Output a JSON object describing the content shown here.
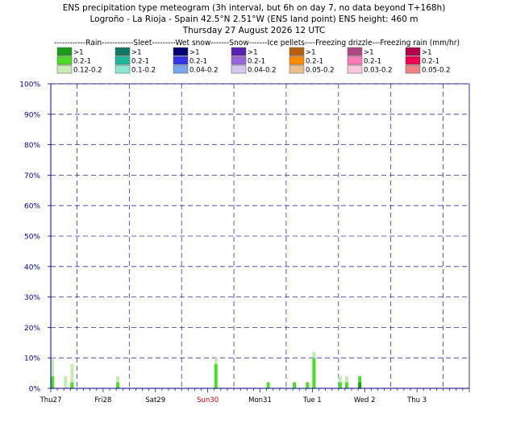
{
  "chart_data": {
    "type": "bar",
    "stacked": true,
    "title": [
      "ENS precipitation type meteogram (3h interval, but 6h on day 7, no data beyond T+168h)",
      "Logroño - La Rioja - Spain 42.5°N 2.51°W (ENS land point) ENS height: 460 m",
      "Thursday 27 August 2026 12 UTC"
    ],
    "legend_header": "------------Rain------------Sleet---------Wet snow-------Snow-------Ice pellets----Freezing drizzle---Freezing rain (mm/hr)",
    "legend": [
      {
        "type": "Rain",
        "classes": [
          {
            "label": ">1",
            "color": "#1a9a1a"
          },
          {
            "label": "0.2-1",
            "color": "#4ddc2a"
          },
          {
            "label": "0.12-0.2",
            "color": "#c8eab4"
          }
        ]
      },
      {
        "type": "Sleet",
        "classes": [
          {
            "label": ">1",
            "color": "#117864"
          },
          {
            "label": "0.2-1",
            "color": "#22b89a"
          },
          {
            "label": "0.1-0.2",
            "color": "#8de6d2"
          }
        ]
      },
      {
        "type": "Wet snow",
        "classes": [
          {
            "label": ">1",
            "color": "#000070"
          },
          {
            "label": "0.2-1",
            "color": "#3535e6"
          },
          {
            "label": "0.04-0.2",
            "color": "#7aa6ee"
          }
        ]
      },
      {
        "type": "Snow",
        "classes": [
          {
            "label": ">1",
            "color": "#5a20b0"
          },
          {
            "label": "0.2-1",
            "color": "#9a66dc"
          },
          {
            "label": "0.04-0.2",
            "color": "#d4c6ee"
          }
        ]
      },
      {
        "type": "Ice pellets",
        "classes": [
          {
            "label": ">1",
            "color": "#b86010"
          },
          {
            "label": "0.2-1",
            "color": "#ff8c00"
          },
          {
            "label": "0.05-0.2",
            "color": "#ecc08c"
          }
        ]
      },
      {
        "type": "Freezing drizzle",
        "classes": [
          {
            "label": ">1",
            "color": "#b04884"
          },
          {
            "label": "0.2-1",
            "color": "#ff7ab8"
          },
          {
            "label": "0.03-0.2",
            "color": "#f8c6dc"
          }
        ]
      },
      {
        "type": "Freezing rain",
        "classes": [
          {
            "label": ">1",
            "color": "#b00048"
          },
          {
            "label": "0.2-1",
            "color": "#f00050"
          },
          {
            "label": "0.05-0.2",
            "color": "#f08484"
          }
        ]
      }
    ],
    "yticks": [
      "0%",
      "10%",
      "20%",
      "30%",
      "40%",
      "50%",
      "60%",
      "70%",
      "80%",
      "90%",
      "100%"
    ],
    "ylim": [
      0,
      100
    ],
    "xlim": [
      0,
      8
    ],
    "xticks": [
      {
        "label": "Thu27",
        "color": "#000000"
      },
      {
        "label": "Fri28",
        "color": "#000000"
      },
      {
        "label": "Sat29",
        "color": "#000000"
      },
      {
        "label": "Sun30",
        "color": "#cc0000"
      },
      {
        "label": "Mon31",
        "color": "#000000"
      },
      {
        "label": "Tue 1",
        "color": "#000000"
      },
      {
        "label": "Wed 2",
        "color": "#000000"
      },
      {
        "label": "Thu 3",
        "color": "#000000"
      }
    ],
    "grid": true,
    "bar_width_days": 0.0625,
    "bars": [
      {
        "x": 0.0,
        "segments": [
          {
            "value": 4,
            "color": "#4ddc2a"
          },
          {
            "value": 6,
            "color": "#c8eab4"
          }
        ]
      },
      {
        "x": 0.25,
        "segments": [
          {
            "value": 4,
            "color": "#c8eab4"
          }
        ]
      },
      {
        "x": 0.375,
        "segments": [
          {
            "value": 2,
            "color": "#4ddc2a"
          },
          {
            "value": 6,
            "color": "#c8eab4"
          }
        ]
      },
      {
        "x": 1.25,
        "segments": [
          {
            "value": 2,
            "color": "#4ddc2a"
          },
          {
            "value": 2,
            "color": "#c8eab4"
          }
        ]
      },
      {
        "x": 3.125,
        "segments": [
          {
            "value": 8,
            "color": "#4ddc2a"
          },
          {
            "value": 2,
            "color": "#c8eab4"
          }
        ]
      },
      {
        "x": 4.125,
        "segments": [
          {
            "value": 2,
            "color": "#4ddc2a"
          }
        ]
      },
      {
        "x": 4.625,
        "segments": [
          {
            "value": 2,
            "color": "#4ddc2a"
          }
        ]
      },
      {
        "x": 4.875,
        "segments": [
          {
            "value": 2,
            "color": "#4ddc2a"
          }
        ]
      },
      {
        "x": 5.0,
        "segments": [
          {
            "value": 10,
            "color": "#4ddc2a"
          },
          {
            "value": 2,
            "color": "#c8eab4"
          }
        ]
      },
      {
        "x": 5.5,
        "segments": [
          {
            "value": 2,
            "color": "#4ddc2a"
          },
          {
            "value": 2,
            "color": "#c8eab4"
          }
        ]
      },
      {
        "x": 5.625,
        "segments": [
          {
            "value": 2,
            "color": "#4ddc2a"
          },
          {
            "value": 2,
            "color": "#c8eab4"
          }
        ]
      },
      {
        "x": 5.875,
        "segments": [
          {
            "value": 2,
            "color": "#1a9a1a"
          },
          {
            "value": 2,
            "color": "#4ddc2a"
          }
        ]
      }
    ],
    "colors": {
      "grid": "#3030a0",
      "axis": "#000080"
    }
  }
}
